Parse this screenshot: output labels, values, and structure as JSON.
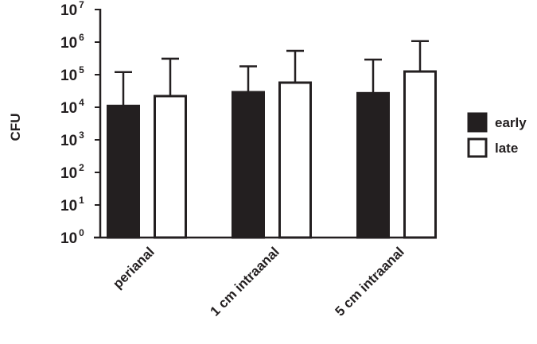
{
  "chart_data": {
    "type": "bar",
    "title": "",
    "xlabel": "",
    "ylabel": "CFU",
    "yscale": "log",
    "ylim": [
      1,
      10000000
    ],
    "yticks": [
      {
        "base": "10",
        "exp": "0"
      },
      {
        "base": "10",
        "exp": "1"
      },
      {
        "base": "10",
        "exp": "2"
      },
      {
        "base": "10",
        "exp": "3"
      },
      {
        "base": "10",
        "exp": "4"
      },
      {
        "base": "10",
        "exp": "5"
      },
      {
        "base": "10",
        "exp": "6"
      },
      {
        "base": "10",
        "exp": "7"
      }
    ],
    "categories": [
      "perianal",
      "1 cm intraanal",
      "5 cm intraanal"
    ],
    "series": [
      {
        "name": "early",
        "color": "#231f20",
        "values": [
          11000,
          29000,
          27000
        ],
        "error_upper": [
          120000,
          180000,
          290000
        ]
      },
      {
        "name": "late",
        "color": "#ffffff",
        "values": [
          22000,
          57000,
          125000
        ],
        "error_upper": [
          310000,
          540000,
          1070000
        ]
      }
    ],
    "legend": {
      "position": "right",
      "entries": [
        "early",
        "late"
      ]
    },
    "grid": false
  }
}
